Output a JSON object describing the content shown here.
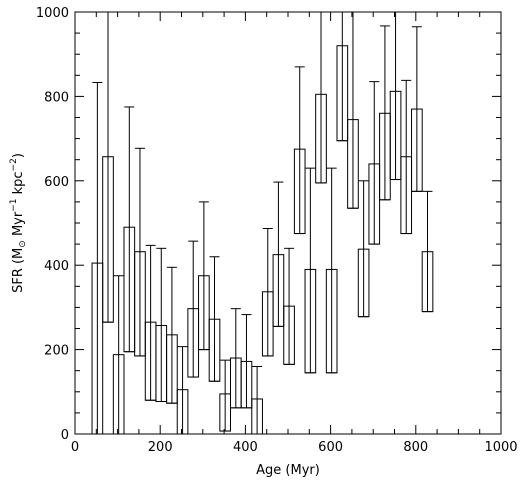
{
  "chart_data": {
    "type": "bar",
    "style": "step histogram with error bars",
    "xlabel": "Age (Myr)",
    "ylabel_parts": {
      "base": "SFR (M",
      "sun_subscript": "⊙",
      "mid": " Myr",
      "exp1": "−1",
      "mid2": " kpc",
      "exp2": "−2",
      "end": ")"
    },
    "xlim": [
      0,
      1000
    ],
    "ylim": [
      0,
      1000
    ],
    "xticks": [
      "0",
      "200",
      "400",
      "600",
      "800",
      "1000"
    ],
    "yticks": [
      "0",
      "200",
      "400",
      "600",
      "800",
      "1000"
    ],
    "bin_width": 25,
    "bins": [
      {
        "x0": 40,
        "sfr": 405,
        "low": 0,
        "high": 833
      },
      {
        "x0": 65,
        "sfr": 657,
        "low": 265,
        "high": 1000
      },
      {
        "x0": 90,
        "sfr": 188,
        "low": 0,
        "high": 375
      },
      {
        "x0": 115,
        "sfr": 490,
        "low": 195,
        "high": 775
      },
      {
        "x0": 140,
        "sfr": 432,
        "low": 185,
        "high": 677
      },
      {
        "x0": 165,
        "sfr": 265,
        "low": 80,
        "high": 447
      },
      {
        "x0": 190,
        "sfr": 257,
        "low": 77,
        "high": 440
      },
      {
        "x0": 215,
        "sfr": 235,
        "low": 73,
        "high": 395
      },
      {
        "x0": 240,
        "sfr": 105,
        "low": 0,
        "high": 207
      },
      {
        "x0": 265,
        "sfr": 297,
        "low": 135,
        "high": 457
      },
      {
        "x0": 290,
        "sfr": 375,
        "low": 200,
        "high": 550
      },
      {
        "x0": 315,
        "sfr": 272,
        "low": 125,
        "high": 420
      },
      {
        "x0": 340,
        "sfr": 95,
        "low": 7,
        "high": 175
      },
      {
        "x0": 365,
        "sfr": 180,
        "low": 62,
        "high": 297
      },
      {
        "x0": 390,
        "sfr": 172,
        "low": 62,
        "high": 283
      },
      {
        "x0": 415,
        "sfr": 83,
        "low": 0,
        "high": 160
      },
      {
        "x0": 440,
        "sfr": 337,
        "low": 185,
        "high": 487
      },
      {
        "x0": 465,
        "sfr": 425,
        "low": 255,
        "high": 597
      },
      {
        "x0": 490,
        "sfr": 303,
        "low": 165,
        "high": 440
      },
      {
        "x0": 515,
        "sfr": 675,
        "low": 475,
        "high": 870
      },
      {
        "x0": 540,
        "sfr": 390,
        "low": 145,
        "high": 630
      },
      {
        "x0": 565,
        "sfr": 805,
        "low": 595,
        "high": 1000
      },
      {
        "x0": 590,
        "sfr": 390,
        "low": 145,
        "high": 630
      },
      {
        "x0": 615,
        "sfr": 920,
        "low": 695,
        "high": 1000
      },
      {
        "x0": 640,
        "sfr": 745,
        "low": 535,
        "high": 1000
      },
      {
        "x0": 665,
        "sfr": 438,
        "low": 278,
        "high": 600
      },
      {
        "x0": 690,
        "sfr": 640,
        "low": 450,
        "high": 835
      },
      {
        "x0": 715,
        "sfr": 760,
        "low": 555,
        "high": 967
      },
      {
        "x0": 740,
        "sfr": 812,
        "low": 603,
        "high": 1000
      },
      {
        "x0": 765,
        "sfr": 657,
        "low": 475,
        "high": 838
      },
      {
        "x0": 790,
        "sfr": 770,
        "low": 575,
        "high": 965
      },
      {
        "x0": 815,
        "sfr": 432,
        "low": 290,
        "high": 575
      }
    ]
  }
}
